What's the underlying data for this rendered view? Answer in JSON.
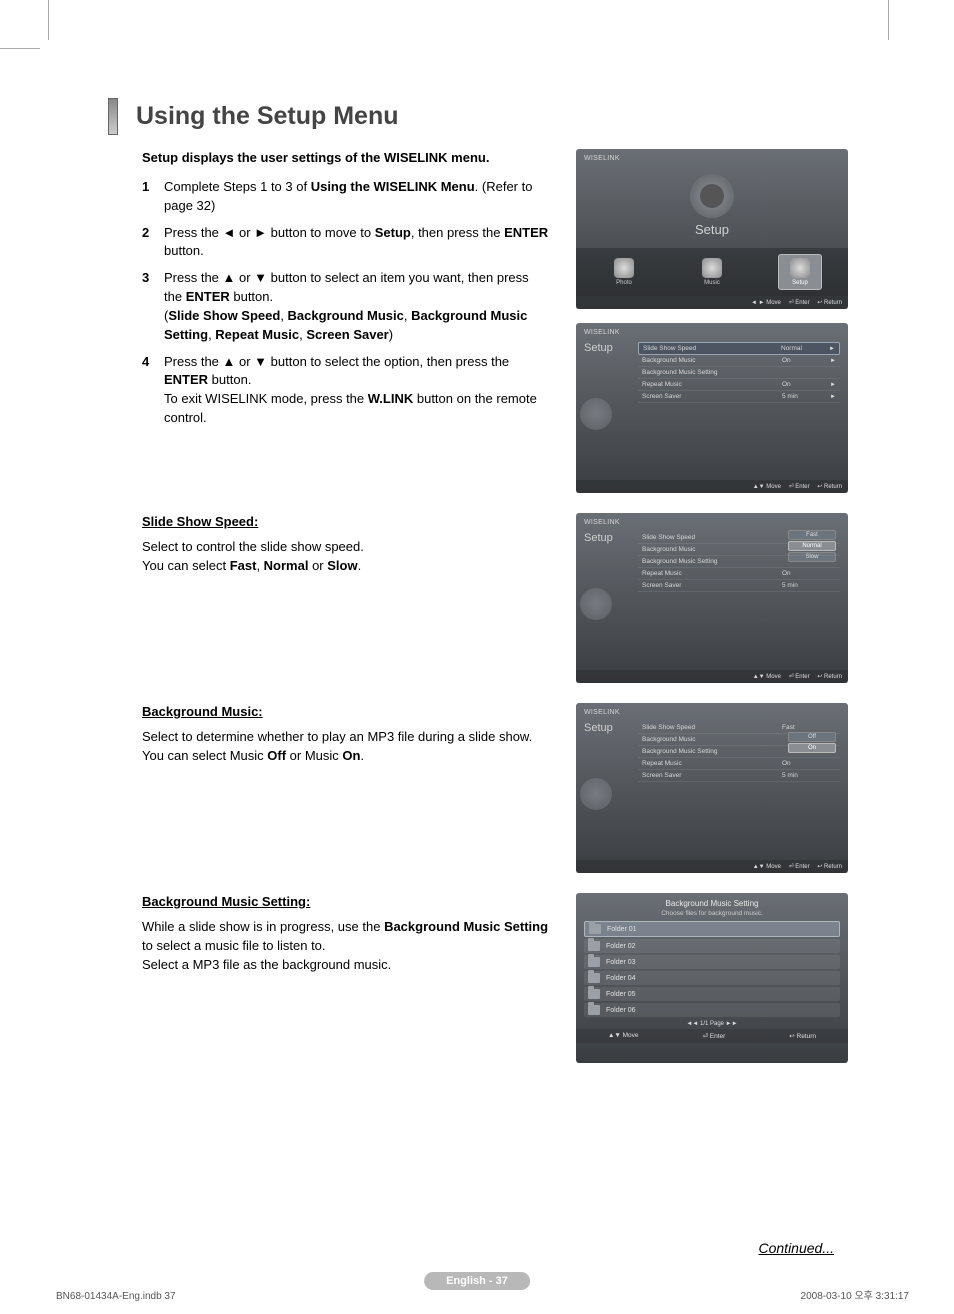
{
  "page": {
    "title": "Using the Setup Menu",
    "intro": "Setup displays the user settings of the WISELINK menu.",
    "continued": "Continued...",
    "page_label": "English - 37"
  },
  "steps": [
    {
      "num": "1",
      "html": "Complete Steps 1 to 3 of <b>Using the WISELINK Menu</b>. (Refer to page 32)"
    },
    {
      "num": "2",
      "html": "Press the ◄ or ► button to move to <b>Setup</b>, then press the <b>ENTER</b> button."
    },
    {
      "num": "3",
      "html": "Press the ▲ or ▼ button to select an item you want, then press the <b>ENTER</b> button.<br>(<b>Slide Show Speed</b>, <b>Background Music</b>, <b>Background Music Setting</b>, <b>Repeat Music</b>, <b>Screen Saver</b>)"
    },
    {
      "num": "4",
      "html": "Press the ▲ or ▼ button to select the option, then press the <b>ENTER</b> button.<br>To exit WISELINK mode, press the <b>W.LINK</b> button on the remote control."
    }
  ],
  "sections": {
    "slide_speed": {
      "title": "Slide Show Speed:",
      "body_html": "Select to control the slide show speed.<br>You can select <b>Fast</b>, <b>Normal</b> or <b>Slow</b>."
    },
    "bg_music": {
      "title": "Background Music:",
      "body_html": "Select to determine whether to play an MP3 file during a slide show.<br>You can select Music <b>Off</b> or Music <b>On</b>."
    },
    "bg_music_setting": {
      "title": "Background Music Setting:",
      "body_html": "While a slide show is in progress, use the <b>Background Music Setting</b> to select a music file to listen to.<br>Select a MP3 file as the background music."
    }
  },
  "osd": {
    "logo": "WISELINK",
    "setup_label": "Setup",
    "icons": {
      "photo": "Photo",
      "music": "Music",
      "setup": "Setup"
    },
    "footer": {
      "move_lr": "◄ ► Move",
      "move_ud": "▲▼ Move",
      "enter": "⏎ Enter",
      "return": "↩ Return",
      "move": "Move",
      "enter2": "Enter",
      "return2": "Return"
    },
    "rows": {
      "slide_show_speed": "Slide Show Speed",
      "background_music": "Background Music",
      "background_music_setting": "Background Music Setting",
      "repeat_music": "Repeat Music",
      "screen_saver": "Screen Saver"
    },
    "values": {
      "normal": "Normal",
      "on": "On",
      "five_min": "5 min",
      "fast": "Fast",
      "slow": "Slow",
      "off": "Off",
      "blank": ""
    },
    "panel2_vals": [
      "Normal",
      "On",
      "",
      "On",
      "5 min"
    ],
    "panel3_vals": [
      "",
      "",
      "",
      "On",
      "5 min"
    ],
    "panel3_submenu": [
      "Fast",
      "Normal",
      "Slow"
    ],
    "panel4_vals": [
      "Fast",
      "",
      "",
      "On",
      "5 min"
    ],
    "panel4_submenu": [
      "Off",
      "On"
    ]
  },
  "folder_osd": {
    "title": "Background Music Setting",
    "subtitle": "Choose files for background music.",
    "folders": [
      "Folder 01",
      "Folder 02",
      "Folder 03",
      "Folder 04",
      "Folder 05",
      "Folder 06"
    ],
    "page": "◄◄ 1/1 Page ►►",
    "footer": {
      "move": "▲▼ Move",
      "enter": "⏎ Enter",
      "return": "↩ Return"
    }
  },
  "footer": {
    "left": "BN68-01434A-Eng.indb   37",
    "right": "2008-03-10   오후 3:31:17"
  },
  "colors": {
    "osd_bg_top": "#6a6f75",
    "osd_bg_bottom": "#3a3d40",
    "page_pill": "#b8b8b8",
    "body_text": "#000000"
  }
}
